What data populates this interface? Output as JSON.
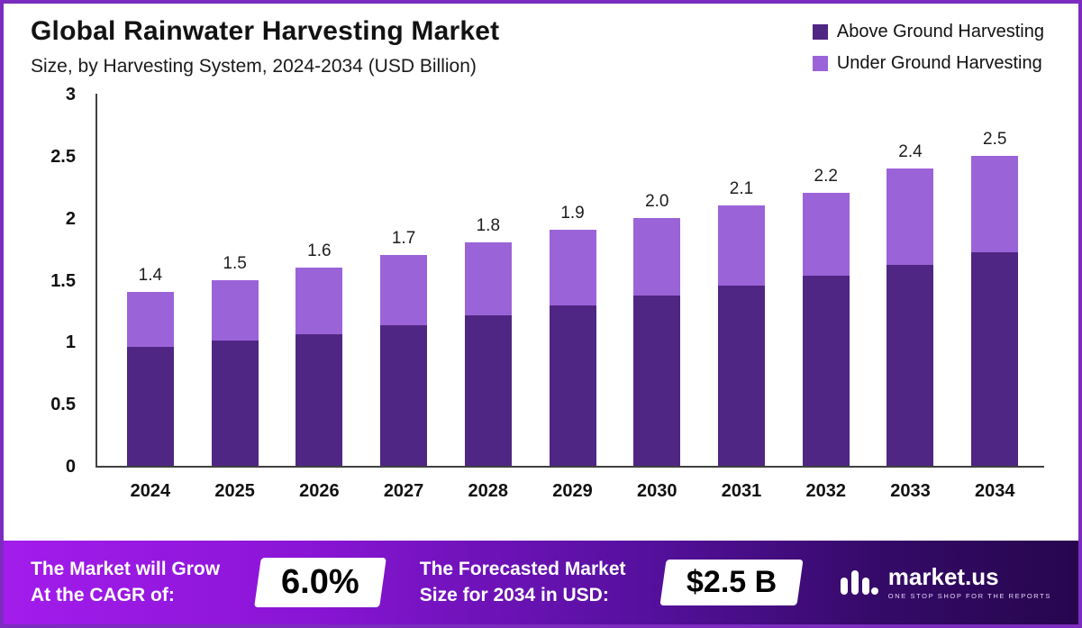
{
  "header": {
    "title": "Global Rainwater Harvesting Market",
    "subtitle": "Size, by Harvesting System, 2024-2034 (USD Billion)"
  },
  "legend": {
    "items": [
      {
        "label": "Above Ground Harvesting",
        "color": "#4f2683"
      },
      {
        "label": "Under Ground Harvesting",
        "color": "#9b63d8"
      }
    ]
  },
  "chart_data": {
    "type": "bar",
    "stacked": true,
    "title": "Global Rainwater Harvesting Market Size, by Harvesting System, 2024-2034 (USD Billion)",
    "unit": "USD Billion",
    "categories": [
      "2024",
      "2025",
      "2026",
      "2027",
      "2028",
      "2029",
      "2030",
      "2031",
      "2032",
      "2033",
      "2034"
    ],
    "series": [
      {
        "name": "Above Ground Harvesting",
        "color": "#4f2683",
        "values": [
          0.96,
          1.01,
          1.06,
          1.13,
          1.21,
          1.29,
          1.37,
          1.45,
          1.53,
          1.62,
          1.72
        ]
      },
      {
        "name": "Under Ground Harvesting",
        "color": "#9b63d8",
        "values": [
          0.44,
          0.49,
          0.54,
          0.57,
          0.59,
          0.61,
          0.63,
          0.65,
          0.67,
          0.78,
          0.78
        ]
      }
    ],
    "totals": [
      "1.4",
      "1.5",
      "1.6",
      "1.7",
      "1.8",
      "1.9",
      "2.0",
      "2.1",
      "2.2",
      "2.4",
      "2.5"
    ],
    "ylim": [
      0,
      3
    ],
    "yticks": [
      0,
      0.5,
      1,
      1.5,
      2,
      2.5,
      3
    ],
    "grid": false,
    "legend_position": "top-right"
  },
  "footer": {
    "cagr_label_line1": "The Market will Grow",
    "cagr_label_line2": "At the CAGR of:",
    "cagr_value": "6.0%",
    "forecast_label_line1": "The Forecasted Market",
    "forecast_label_line2": "Size for 2034 in USD:",
    "forecast_value": "$2.5 B",
    "brand_name": "market.us",
    "brand_tagline": "ONE STOP SHOP FOR THE REPORTS"
  }
}
